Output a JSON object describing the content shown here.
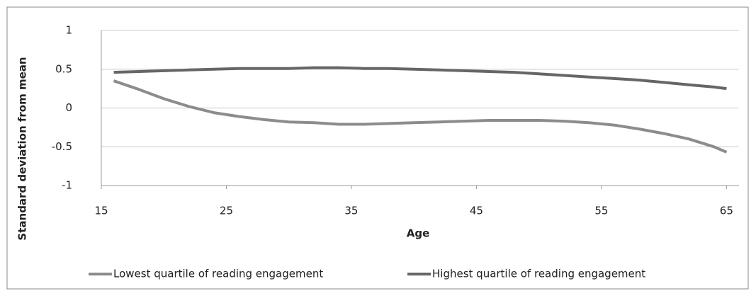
{
  "chart_data": {
    "type": "line",
    "xlabel": "Age",
    "ylabel": "Standard deviation from mean",
    "x": [
      16,
      18,
      20,
      22,
      24,
      26,
      28,
      30,
      32,
      34,
      36,
      38,
      40,
      42,
      44,
      46,
      48,
      50,
      52,
      54,
      56,
      58,
      60,
      62,
      64,
      65
    ],
    "series": [
      {
        "name": "Lowest quartile of reading engagement",
        "color": "#8c8c8c",
        "values": [
          0.35,
          0.24,
          0.12,
          0.02,
          -0.06,
          -0.11,
          -0.15,
          -0.18,
          -0.19,
          -0.21,
          -0.21,
          -0.2,
          -0.19,
          -0.18,
          -0.17,
          -0.16,
          -0.16,
          -0.16,
          -0.17,
          -0.19,
          -0.22,
          -0.27,
          -0.33,
          -0.4,
          -0.5,
          -0.57
        ]
      },
      {
        "name": "Highest quartile of reading engagement",
        "color": "#666666",
        "values": [
          0.46,
          0.47,
          0.48,
          0.49,
          0.5,
          0.51,
          0.51,
          0.51,
          0.52,
          0.52,
          0.51,
          0.51,
          0.5,
          0.49,
          0.48,
          0.47,
          0.46,
          0.44,
          0.42,
          0.4,
          0.38,
          0.36,
          0.33,
          0.3,
          0.27,
          0.25
        ]
      }
    ],
    "xlim": [
      15,
      66
    ],
    "xticks": [
      15,
      25,
      35,
      45,
      55,
      65
    ],
    "ylim": [
      -1,
      1
    ],
    "yticks": [
      -1,
      -0.5,
      0,
      0.5,
      1
    ],
    "grid": true,
    "legend": "bottom"
  }
}
